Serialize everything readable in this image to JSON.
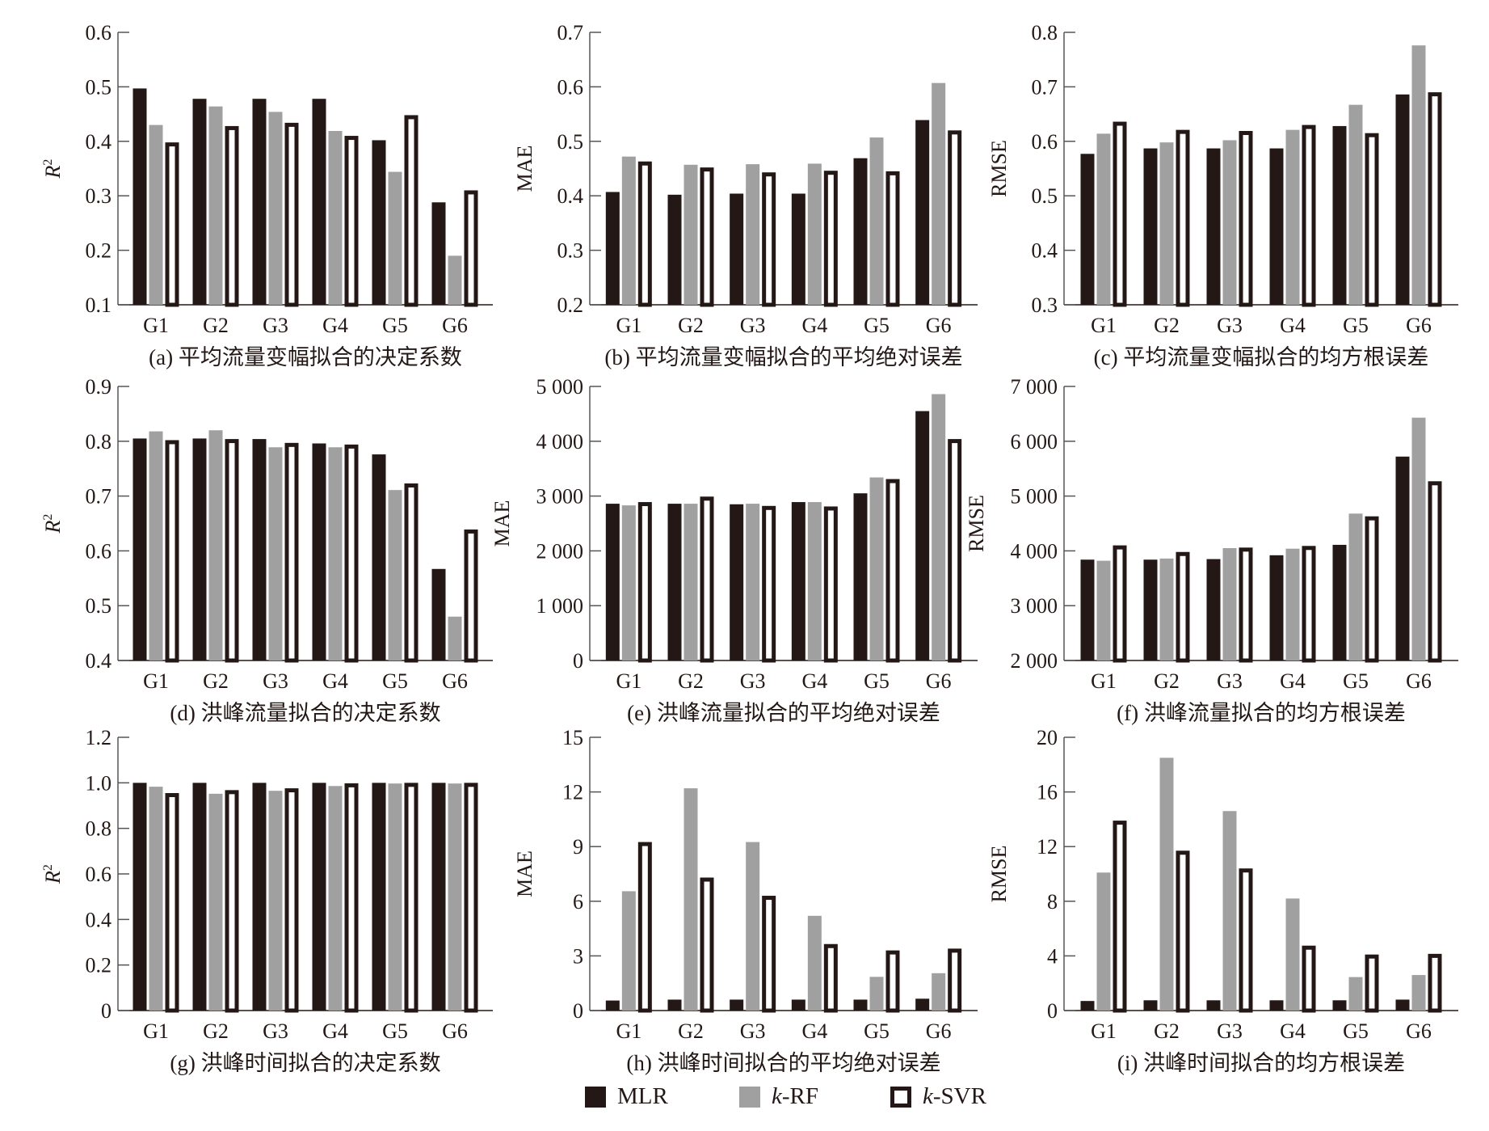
{
  "colors": {
    "MLR": "#231815",
    "k-RF": "#a0a0a0",
    "k-SVR": "#ffffff",
    "outline": "#231815"
  },
  "legend": {
    "items": [
      {
        "key": "MLR",
        "prefix": "",
        "label": "MLR"
      },
      {
        "key": "k-RF",
        "prefix": "k",
        "label": "-RF"
      },
      {
        "key": "k-SVR",
        "prefix": "k",
        "label": "-SVR"
      }
    ]
  },
  "chart_data": [
    {
      "id": "a",
      "type": "bar",
      "title": "(a) 平均流量变幅拟合的决定系数",
      "xlabel": "",
      "ylabel": "R²",
      "ylabel_italic_R": true,
      "categories": [
        "G1",
        "G2",
        "G3",
        "G4",
        "G5",
        "G6"
      ],
      "ylim": [
        0.1,
        0.6
      ],
      "yticks": [
        0.1,
        0.2,
        0.3,
        0.4,
        0.5,
        0.6
      ],
      "ytick_labels": [
        "0.1",
        "0.2",
        "0.3",
        "0.4",
        "0.5",
        "0.6"
      ],
      "series": [
        {
          "name": "MLR",
          "values": [
            0.497,
            0.478,
            0.478,
            0.478,
            0.402,
            0.288
          ]
        },
        {
          "name": "k-RF",
          "values": [
            0.43,
            0.464,
            0.454,
            0.419,
            0.344,
            0.19
          ]
        },
        {
          "name": "k-SVR",
          "values": [
            0.398,
            0.428,
            0.434,
            0.41,
            0.448,
            0.31
          ]
        }
      ]
    },
    {
      "id": "b",
      "type": "bar",
      "title": "(b) 平均流量变幅拟合的平均绝对误差",
      "xlabel": "",
      "ylabel": "MAE",
      "categories": [
        "G1",
        "G2",
        "G3",
        "G4",
        "G5",
        "G6"
      ],
      "ylim": [
        0.2,
        0.7
      ],
      "yticks": [
        0.2,
        0.3,
        0.4,
        0.5,
        0.6,
        0.7
      ],
      "ytick_labels": [
        "0.2",
        "0.3",
        "0.4",
        "0.5",
        "0.6",
        "0.7"
      ],
      "series": [
        {
          "name": "MLR",
          "values": [
            0.407,
            0.402,
            0.404,
            0.404,
            0.469,
            0.539
          ]
        },
        {
          "name": "k-RF",
          "values": [
            0.472,
            0.457,
            0.458,
            0.459,
            0.507,
            0.607
          ]
        },
        {
          "name": "k-SVR",
          "values": [
            0.463,
            0.452,
            0.443,
            0.446,
            0.445,
            0.52
          ]
        }
      ]
    },
    {
      "id": "c",
      "type": "bar",
      "title": "(c) 平均流量变幅拟合的均方根误差",
      "xlabel": "",
      "ylabel": "RMSE",
      "categories": [
        "G1",
        "G2",
        "G3",
        "G4",
        "G5",
        "G6"
      ],
      "ylim": [
        0.3,
        0.8
      ],
      "yticks": [
        0.3,
        0.4,
        0.5,
        0.6,
        0.7,
        0.8
      ],
      "ytick_labels": [
        "0.3",
        "0.4",
        "0.5",
        "0.6",
        "0.7",
        "0.8"
      ],
      "series": [
        {
          "name": "MLR",
          "values": [
            0.577,
            0.587,
            0.587,
            0.587,
            0.628,
            0.686
          ]
        },
        {
          "name": "k-RF",
          "values": [
            0.614,
            0.598,
            0.602,
            0.621,
            0.667,
            0.776
          ]
        },
        {
          "name": "k-SVR",
          "values": [
            0.636,
            0.621,
            0.619,
            0.63,
            0.615,
            0.69
          ]
        }
      ]
    },
    {
      "id": "d",
      "type": "bar",
      "title": "(d) 洪峰流量拟合的决定系数",
      "xlabel": "",
      "ylabel": "R²",
      "ylabel_italic_R": true,
      "categories": [
        "G1",
        "G2",
        "G3",
        "G4",
        "G5",
        "G6"
      ],
      "ylim": [
        0.4,
        0.9
      ],
      "yticks": [
        0.4,
        0.5,
        0.6,
        0.7,
        0.8,
        0.9
      ],
      "ytick_labels": [
        "0.4",
        "0.5",
        "0.6",
        "0.7",
        "0.8",
        "0.9"
      ],
      "series": [
        {
          "name": "MLR",
          "values": [
            0.805,
            0.805,
            0.804,
            0.796,
            0.776,
            0.567
          ]
        },
        {
          "name": "k-RF",
          "values": [
            0.818,
            0.82,
            0.789,
            0.789,
            0.711,
            0.48
          ]
        },
        {
          "name": "k-SVR",
          "values": [
            0.802,
            0.804,
            0.797,
            0.794,
            0.723,
            0.639
          ]
        }
      ]
    },
    {
      "id": "e",
      "type": "bar",
      "title": "(e) 洪峰流量拟合的平均绝对误差",
      "xlabel": "",
      "ylabel": "MAE",
      "categories": [
        "G1",
        "G2",
        "G3",
        "G4",
        "G5",
        "G6"
      ],
      "ylim": [
        0,
        5000
      ],
      "yticks": [
        0,
        1000,
        2000,
        3000,
        4000,
        5000
      ],
      "ytick_labels": [
        "0",
        "1 000",
        "2 000",
        "3 000",
        "4 000",
        "5 000"
      ],
      "series": [
        {
          "name": "MLR",
          "values": [
            2860,
            2860,
            2850,
            2890,
            3050,
            4550
          ]
        },
        {
          "name": "k-RF",
          "values": [
            2830,
            2860,
            2860,
            2890,
            3340,
            4860
          ]
        },
        {
          "name": "k-SVR",
          "values": [
            2890,
            2990,
            2820,
            2810,
            3310,
            4040
          ]
        }
      ]
    },
    {
      "id": "f",
      "type": "bar",
      "title": "(f) 洪峰流量拟合的均方根误差",
      "xlabel": "",
      "ylabel": "RMSE",
      "categories": [
        "G1",
        "G2",
        "G3",
        "G4",
        "G5",
        "G6"
      ],
      "ylim": [
        2000,
        7000
      ],
      "yticks": [
        2000,
        3000,
        4000,
        5000,
        6000,
        7000
      ],
      "ytick_labels": [
        "2 000",
        "3 000",
        "4 000",
        "5 000",
        "6 000",
        "7 000"
      ],
      "series": [
        {
          "name": "MLR",
          "values": [
            3840,
            3840,
            3850,
            3920,
            4110,
            5720
          ]
        },
        {
          "name": "k-RF",
          "values": [
            3820,
            3860,
            4050,
            4040,
            4680,
            6430
          ]
        },
        {
          "name": "k-SVR",
          "values": [
            4100,
            3980,
            4060,
            4090,
            4630,
            5270
          ]
        }
      ]
    },
    {
      "id": "g",
      "type": "bar",
      "title": "(g) 洪峰时间拟合的决定系数",
      "xlabel": "",
      "ylabel": "R²",
      "ylabel_italic_R": true,
      "categories": [
        "G1",
        "G2",
        "G3",
        "G4",
        "G5",
        "G6"
      ],
      "ylim": [
        0,
        1.2
      ],
      "yticks": [
        0,
        0.2,
        0.4,
        0.6,
        0.8,
        1.0,
        1.2
      ],
      "ytick_labels": [
        "0",
        "0.2",
        "0.4",
        "0.6",
        "0.8",
        "1.0",
        "1.2"
      ],
      "series": [
        {
          "name": "MLR",
          "values": [
            1.0,
            1.0,
            1.0,
            1.0,
            1.0,
            1.0
          ]
        },
        {
          "name": "k-RF",
          "values": [
            0.983,
            0.952,
            0.965,
            0.986,
            0.997,
            0.997
          ]
        },
        {
          "name": "k-SVR",
          "values": [
            0.955,
            0.968,
            0.976,
            0.998,
            1.0,
            1.0
          ]
        }
      ]
    },
    {
      "id": "h",
      "type": "bar",
      "title": "(h) 洪峰时间拟合的平均绝对误差",
      "xlabel": "",
      "ylabel": "MAE",
      "categories": [
        "G1",
        "G2",
        "G3",
        "G4",
        "G5",
        "G6"
      ],
      "ylim": [
        0,
        15
      ],
      "yticks": [
        0,
        3,
        6,
        9,
        12,
        15
      ],
      "ytick_labels": [
        "0",
        "3",
        "6",
        "9",
        "12",
        "15"
      ],
      "series": [
        {
          "name": "MLR",
          "values": [
            0.55,
            0.6,
            0.6,
            0.6,
            0.6,
            0.65
          ]
        },
        {
          "name": "k-RF",
          "values": [
            6.55,
            12.2,
            9.25,
            5.2,
            1.85,
            2.05
          ]
        },
        {
          "name": "k-SVR",
          "values": [
            9.25,
            7.3,
            6.3,
            3.65,
            3.3,
            3.4
          ]
        }
      ]
    },
    {
      "id": "i",
      "type": "bar",
      "title": "(i) 洪峰时间拟合的均方根误差",
      "xlabel": "",
      "ylabel": "RMSE",
      "categories": [
        "G1",
        "G2",
        "G3",
        "G4",
        "G5",
        "G6"
      ],
      "ylim": [
        0,
        20
      ],
      "yticks": [
        0,
        4,
        8,
        12,
        16,
        20
      ],
      "ytick_labels": [
        "0",
        "4",
        "8",
        "12",
        "16",
        "20"
      ],
      "series": [
        {
          "name": "MLR",
          "values": [
            0.7,
            0.75,
            0.75,
            0.75,
            0.75,
            0.8
          ]
        },
        {
          "name": "k-RF",
          "values": [
            10.1,
            18.5,
            14.6,
            8.2,
            2.45,
            2.6
          ]
        },
        {
          "name": "k-SVR",
          "values": [
            13.9,
            11.7,
            10.4,
            4.75,
            4.1,
            4.15
          ]
        }
      ]
    }
  ]
}
